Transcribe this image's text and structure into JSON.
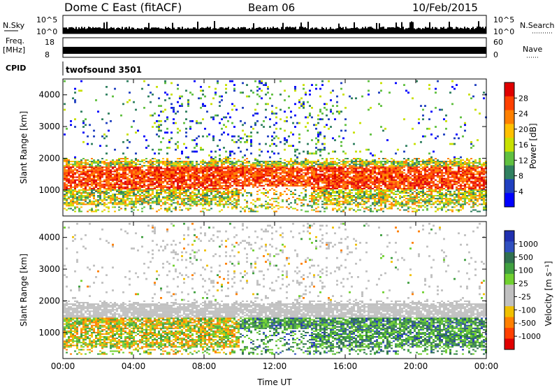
{
  "header": {
    "station": "Dome C East (fitACF)",
    "beam": "Beam 06",
    "date": "10/Feb/2015"
  },
  "top_panels": {
    "nsky_label": "N.Sky",
    "nsky_ticks": [
      "10^5",
      "10^0"
    ],
    "nsearch_label": "N.Search",
    "nsearch_ticks": [
      "10^5",
      "10^0"
    ],
    "freq_label": "Freq.",
    "freq_unit": "[MHz]",
    "freq_ticks": [
      "18",
      "8"
    ],
    "nave_label": "Nave",
    "nave_ticks": [
      "60",
      "0"
    ],
    "cpid_label": "CPID",
    "cpid_text": "twofsound 3501"
  },
  "chart_data": [
    {
      "type": "heatmap",
      "panel": "power",
      "ylabel": "Slant Range [km]",
      "xlabel": "",
      "x_ticks": [
        "00:00",
        "04:00",
        "08:00",
        "12:00",
        "16:00",
        "20:00",
        "00:00"
      ],
      "x_range_hours": [
        0,
        24
      ],
      "y_ticks": [
        1000,
        2000,
        3000,
        4000
      ],
      "ylim": [
        180,
        4500
      ],
      "colorbar": {
        "label": "Power [dB]",
        "ticks": [
          "28",
          "24",
          "20",
          "16",
          "12",
          "8",
          "4"
        ],
        "colors": [
          "#e00000",
          "#ff4000",
          "#ff8000",
          "#ffc000",
          "#c8e000",
          "#60c040",
          "#308060",
          "#2040c0",
          "#0000ff"
        ]
      }
    },
    {
      "type": "heatmap",
      "panel": "velocity",
      "ylabel": "Slant Range [km]",
      "xlabel": "Time UT",
      "x_ticks": [
        "00:00",
        "04:00",
        "08:00",
        "12:00",
        "16:00",
        "20:00",
        "00:00"
      ],
      "x_range_hours": [
        0,
        24
      ],
      "y_ticks": [
        1000,
        2000,
        3000,
        4000
      ],
      "ylim": [
        180,
        4500
      ],
      "colorbar": {
        "label": "Velocity [m s⁻¹]",
        "ticks": [
          "1000",
          "500",
          "100",
          "25",
          "-25",
          "-100",
          "-500",
          "-1000"
        ],
        "colors": [
          "#2030b0",
          "#3050c0",
          "#307050",
          "#40a040",
          "#70d030",
          "#c0c0c0",
          "#c0c0c0",
          "#f0c000",
          "#ff8000",
          "#ff4000",
          "#e00000"
        ]
      }
    }
  ]
}
